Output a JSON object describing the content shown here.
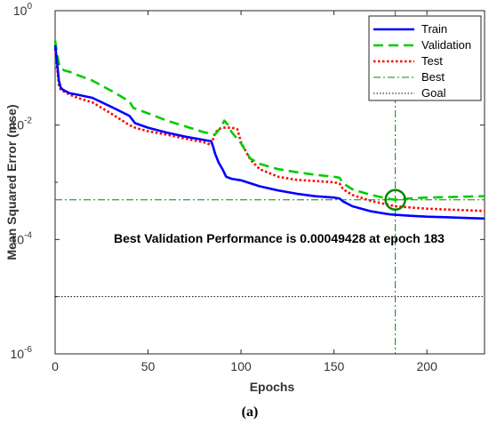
{
  "caption": "(a)",
  "chart_data": {
    "type": "line",
    "title": "",
    "xlabel": "Epochs",
    "ylabel": "Mean Squared Error  (mse)",
    "xlim": [
      0,
      231
    ],
    "ylim": [
      1e-06,
      1
    ],
    "y_scale": "log",
    "x_ticks": [
      0,
      50,
      100,
      150,
      200
    ],
    "x_tick_labels": [
      "0",
      "50",
      "100",
      "150",
      "200"
    ],
    "y_ticks": [
      {
        "value": 1,
        "base": "10",
        "exp": "0"
      },
      {
        "value": 0.01,
        "base": "10",
        "exp": "-2"
      },
      {
        "value": 0.0001,
        "base": "10",
        "exp": "-4"
      },
      {
        "value": 1e-06,
        "base": "10",
        "exp": "-6"
      }
    ],
    "grid": false,
    "legend_position": "top-right",
    "annotation": "Best Validation Performance is 0.00049428 at epoch 183",
    "best": {
      "epoch": 183,
      "value": 0.00049428
    },
    "goal": 1e-05,
    "series": [
      {
        "name": "Train",
        "color": "#0000ff",
        "style": "solid",
        "x": [
          0,
          1,
          2,
          3,
          4,
          5,
          8,
          12,
          20,
          30,
          40,
          43,
          50,
          60,
          70,
          80,
          84,
          85,
          86,
          88,
          90,
          92,
          95,
          100,
          110,
          120,
          130,
          140,
          150,
          153,
          155,
          160,
          170,
          180,
          183,
          190,
          200,
          210,
          220,
          231
        ],
        "y": [
          0.25,
          0.13,
          0.06,
          0.045,
          0.042,
          0.04,
          0.036,
          0.034,
          0.03,
          0.021,
          0.0145,
          0.0108,
          0.009,
          0.0074,
          0.0063,
          0.0055,
          0.0052,
          0.0042,
          0.0032,
          0.0022,
          0.0017,
          0.00125,
          0.00115,
          0.00108,
          0.00085,
          0.00072,
          0.00063,
          0.00057,
          0.00054,
          0.00052,
          0.00046,
          0.00038,
          0.00031,
          0.000275,
          0.00027,
          0.00026,
          0.00025,
          0.000245,
          0.000238,
          0.000232
        ]
      },
      {
        "name": "Validation",
        "color": "#00cc00",
        "style": "dashed",
        "x": [
          0,
          1,
          2,
          3,
          4,
          5,
          8,
          12,
          20,
          30,
          40,
          42,
          50,
          60,
          70,
          80,
          86,
          89,
          91,
          93,
          95,
          100,
          105,
          110,
          120,
          130,
          140,
          150,
          153,
          155,
          160,
          170,
          180,
          183,
          190,
          200,
          210,
          220,
          231
        ],
        "y": [
          0.3,
          0.18,
          0.12,
          0.1,
          0.095,
          0.09,
          0.085,
          0.075,
          0.06,
          0.04,
          0.026,
          0.02,
          0.016,
          0.012,
          0.0095,
          0.0075,
          0.0068,
          0.009,
          0.012,
          0.01,
          0.0075,
          0.0048,
          0.0026,
          0.0021,
          0.0017,
          0.0015,
          0.00135,
          0.00125,
          0.0012,
          0.00095,
          0.00075,
          0.0006,
          0.00051,
          0.00049428,
          0.00052,
          0.00054,
          0.00055,
          0.00056,
          0.00057
        ]
      },
      {
        "name": "Test",
        "color": "#ff0000",
        "style": "dotted",
        "x": [
          0,
          1,
          2,
          3,
          4,
          5,
          8,
          12,
          20,
          30,
          40,
          43,
          50,
          60,
          70,
          80,
          84,
          86,
          88,
          90,
          95,
          98,
          100,
          105,
          110,
          120,
          130,
          140,
          150,
          153,
          155,
          160,
          170,
          180,
          183,
          190,
          200,
          210,
          220,
          231
        ],
        "y": [
          0.22,
          0.11,
          0.05,
          0.042,
          0.04,
          0.038,
          0.034,
          0.03,
          0.025,
          0.016,
          0.01,
          0.009,
          0.0078,
          0.0068,
          0.0058,
          0.005,
          0.0045,
          0.0072,
          0.0085,
          0.009,
          0.009,
          0.0085,
          0.005,
          0.0025,
          0.0017,
          0.00125,
          0.0011,
          0.00105,
          0.001,
          0.00095,
          0.00075,
          0.0006,
          0.00047,
          0.0004,
          0.00038,
          0.000365,
          0.000345,
          0.000335,
          0.000325,
          0.000315
        ]
      },
      {
        "name": "Best",
        "color": "#008800",
        "style": "dashdot"
      },
      {
        "name": "Goal",
        "color": "#000000",
        "style": "dotted"
      }
    ]
  }
}
